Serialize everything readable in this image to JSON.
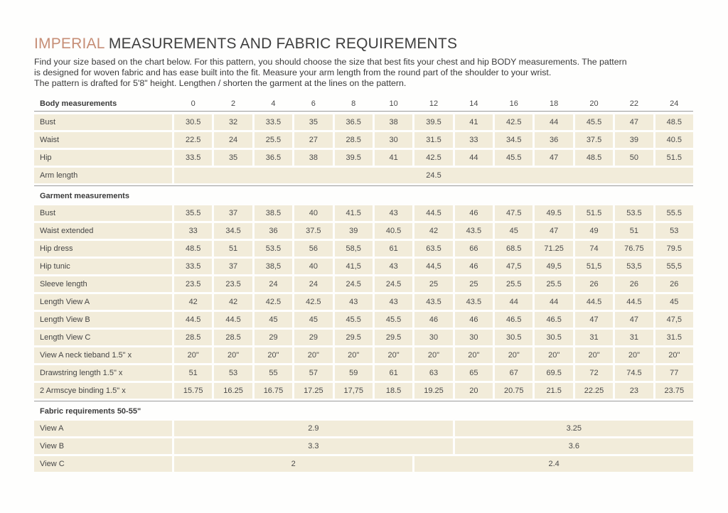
{
  "colors": {
    "accent": "#c68e76",
    "row_background": "#f2ecda",
    "divider": "#9b9b9b",
    "text": "#3b3b3b"
  },
  "page": {
    "title_accent": "IMPERIAL",
    "title_rest": " MEASUREMENTS AND FABRIC REQUIREMENTS",
    "intro_lines": [
      "Find your size based on the chart below. For this pattern, you should choose the size that best fits your chest and hip BODY measurements. The pattern",
      "is designed for woven fabric and has ease built into the fit. Measure your arm length from the round part of the shoulder to your wrist.",
      "The pattern is drafted for 5'8\" height. Lengthen / shorten the garment at the lines on the pattern."
    ]
  },
  "table": {
    "header": {
      "label": "Body measurements",
      "sizes": [
        "0",
        "2",
        "4",
        "6",
        "8",
        "10",
        "12",
        "14",
        "16",
        "18",
        "20",
        "22",
        "24"
      ]
    },
    "body_rows": [
      {
        "label": "Bust",
        "values": [
          "30.5",
          "32",
          "33.5",
          "35",
          "36.5",
          "38",
          "39.5",
          "41",
          "42.5",
          "44",
          "45.5",
          "47",
          "48.5"
        ]
      },
      {
        "label": "Waist",
        "values": [
          "22.5",
          "24",
          "25.5",
          "27",
          "28.5",
          "30",
          "31.5",
          "33",
          "34.5",
          "36",
          "37.5",
          "39",
          "40.5"
        ]
      },
      {
        "label": "Hip",
        "values": [
          "33.5",
          "35",
          "36.5",
          "38",
          "39.5",
          "41",
          "42.5",
          "44",
          "45.5",
          "47",
          "48.5",
          "50",
          "51.5"
        ]
      },
      {
        "label": "Arm length",
        "span_value": "24.5"
      }
    ],
    "garment_header": "Garment measurements",
    "garment_rows": [
      {
        "label": "Bust",
        "values": [
          "35.5",
          "37",
          "38.5",
          "40",
          "41.5",
          "43",
          "44.5",
          "46",
          "47.5",
          "49.5",
          "51.5",
          "53.5",
          "55.5"
        ]
      },
      {
        "label": "Waist extended",
        "values": [
          "33",
          "34.5",
          "36",
          "37.5",
          "39",
          "40.5",
          "42",
          "43.5",
          "45",
          "47",
          "49",
          "51",
          "53"
        ]
      },
      {
        "label": "Hip dress",
        "values": [
          "48.5",
          "51",
          "53.5",
          "56",
          "58,5",
          "61",
          "63.5",
          "66",
          "68.5",
          "71.25",
          "74",
          "76.75",
          "79.5"
        ]
      },
      {
        "label": "Hip tunic",
        "values": [
          "33.5",
          "37",
          "38,5",
          "40",
          "41,5",
          "43",
          "44,5",
          "46",
          "47,5",
          "49,5",
          "51,5",
          "53,5",
          "55,5"
        ]
      },
      {
        "label": "Sleeve length",
        "values": [
          "23.5",
          "23.5",
          "24",
          "24",
          "24.5",
          "24.5",
          "25",
          "25",
          "25.5",
          "25.5",
          "26",
          "26",
          "26"
        ]
      },
      {
        "label": "Length View A",
        "values": [
          "42",
          "42",
          "42.5",
          "42.5",
          "43",
          "43",
          "43.5",
          "43.5",
          "44",
          "44",
          "44.5",
          "44.5",
          "45"
        ]
      },
      {
        "label": "Length View B",
        "values": [
          "44.5",
          "44.5",
          "45",
          "45",
          "45.5",
          "45.5",
          "46",
          "46",
          "46.5",
          "46.5",
          "47",
          "47",
          "47,5"
        ]
      },
      {
        "label": "Length View C",
        "values": [
          "28.5",
          "28.5",
          "29",
          "29",
          "29.5",
          "29.5",
          "30",
          "30",
          "30.5",
          "30.5",
          "31",
          "31",
          "31.5"
        ]
      },
      {
        "label": "View A neck tieband 1.5\" x",
        "values": [
          "20\"",
          "20\"",
          "20\"",
          "20\"",
          "20\"",
          "20\"",
          "20\"",
          "20\"",
          "20\"",
          "20\"",
          "20\"",
          "20\"",
          "20\""
        ]
      },
      {
        "label": "Drawstring length 1.5\" x",
        "values": [
          "51",
          "53",
          "55",
          "57",
          "59",
          "61",
          "63",
          "65",
          "67",
          "69.5",
          "72",
          "74.5",
          "77"
        ]
      },
      {
        "label": "2 Armscye binding 1.5\" x",
        "values": [
          "15.75",
          "16.25",
          "16.75",
          "17.25",
          "17,75",
          "18.5",
          "19.25",
          "20",
          "20.75",
          "21.5",
          "22.25",
          "23",
          "23.75"
        ]
      }
    ],
    "fabric_header": "Fabric requirements 50-55\"",
    "fabric_rows": [
      {
        "label": "View A",
        "span1": "2.9",
        "span2": "3.25",
        "span1_cols": 7
      },
      {
        "label": "View B",
        "span1": "3.3",
        "span2": "3.6",
        "span1_cols": 7
      },
      {
        "label": "View C",
        "span1": "2",
        "span2": "2.4",
        "span1_cols": 6
      }
    ]
  }
}
